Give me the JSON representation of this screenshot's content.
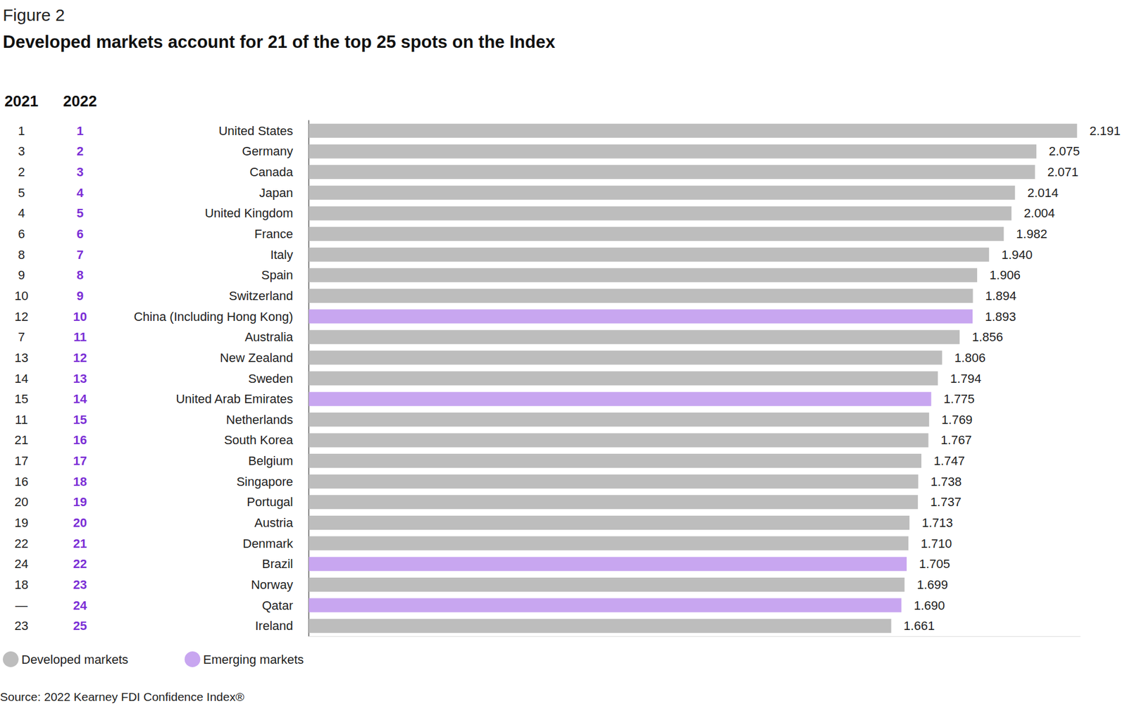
{
  "chart_data": {
    "type": "bar",
    "orientation": "horizontal",
    "subtitle": "Figure 2",
    "title": "Developed markets account for 21 of the top 25 spots on the Index",
    "source": "Source: 2022 Kearney FDI Confidence Index®",
    "categories": [
      "United States",
      "Germany",
      "Canada",
      "Japan",
      "United Kingdom",
      "France",
      "Italy",
      "Spain",
      "Switzerland",
      "China (Including Hong Kong)",
      "Australia",
      "New Zealand",
      "Sweden",
      "United Arab Emirates",
      "Netherlands",
      "South Korea",
      "Belgium",
      "Singapore",
      "Portugal",
      "Austria",
      "Denmark",
      "Brazil",
      "Norway",
      "Qatar",
      "Ireland"
    ],
    "series": [
      {
        "name": "Developed markets",
        "color": "#bdbdbd",
        "values": [
          2.191,
          2.075,
          2.071,
          2.014,
          2.004,
          1.982,
          1.94,
          1.906,
          1.894,
          null,
          1.856,
          1.806,
          1.794,
          null,
          1.769,
          1.767,
          1.747,
          1.738,
          1.737,
          1.713,
          1.71,
          null,
          1.699,
          null,
          1.661
        ],
        "value_labels": [
          "2.191",
          "2.075",
          "2.071",
          "2.014",
          "2.004",
          "1.982",
          "1.940",
          "1.906",
          "1.894",
          null,
          "1.856",
          "1.806",
          "1.794",
          null,
          "1.769",
          "1.767",
          "1.747",
          "1.738",
          "1.737",
          "1.713",
          "1.710",
          null,
          "1.699",
          null,
          "1.661"
        ]
      },
      {
        "name": "Emerging markets",
        "color": "#c8a6f0",
        "values": [
          null,
          null,
          null,
          null,
          null,
          null,
          null,
          null,
          null,
          1.893,
          null,
          null,
          null,
          1.775,
          null,
          null,
          null,
          null,
          null,
          null,
          null,
          1.705,
          null,
          1.69,
          null
        ],
        "value_labels": [
          null,
          null,
          null,
          null,
          null,
          null,
          null,
          null,
          null,
          "1.893",
          null,
          null,
          null,
          "1.775",
          null,
          null,
          null,
          null,
          null,
          null,
          null,
          "1.705",
          null,
          "1.690",
          null
        ]
      }
    ],
    "rank_columns": [
      {
        "name": "2021",
        "color": "#222222",
        "null_label": "—",
        "values": [
          1,
          3,
          2,
          5,
          4,
          6,
          8,
          9,
          10,
          12,
          7,
          13,
          14,
          15,
          11,
          21,
          17,
          16,
          20,
          19,
          22,
          24,
          18,
          null,
          23
        ]
      },
      {
        "name": "2022",
        "color": "#7b2fd6",
        "values": [
          1,
          2,
          3,
          4,
          5,
          6,
          7,
          8,
          9,
          10,
          11,
          12,
          13,
          14,
          15,
          16,
          17,
          18,
          19,
          20,
          21,
          22,
          23,
          24,
          25
        ]
      }
    ],
    "xlim": [
      0,
      2.2
    ],
    "tick_labels": false,
    "grid": false,
    "data_labels": true,
    "legend": "bottom-left"
  }
}
